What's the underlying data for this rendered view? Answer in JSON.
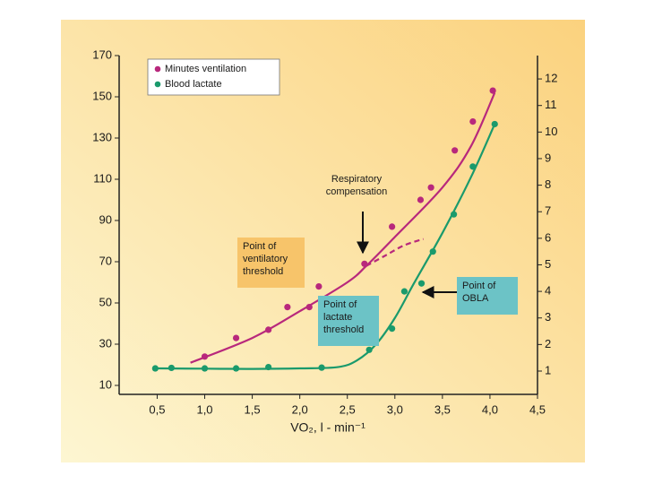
{
  "chart_data": {
    "type": "scatter",
    "xlabel": "VO₂, l - min⁻¹",
    "xlim": [
      0.1,
      4.5
    ],
    "xticks": [
      {
        "value": 0.5,
        "label": "0,5"
      },
      {
        "value": 1.0,
        "label": "1,0"
      },
      {
        "value": 1.5,
        "label": "1,5"
      },
      {
        "value": 2.0,
        "label": "2,0"
      },
      {
        "value": 2.5,
        "label": "2,5"
      },
      {
        "value": 3.0,
        "label": "3,0"
      },
      {
        "value": 3.5,
        "label": "3,5"
      },
      {
        "value": 4.0,
        "label": "4,0"
      },
      {
        "value": 4.5,
        "label": "4,5"
      }
    ],
    "ylim": [
      10,
      170
    ],
    "yticks": [
      10,
      30,
      50,
      70,
      90,
      110,
      130,
      150,
      170
    ],
    "y2lim": [
      0.46,
      12.88
    ],
    "y2ticks": [
      1,
      2,
      3,
      4,
      5,
      6,
      7,
      8,
      9,
      10,
      11,
      12
    ],
    "legend": "upper left",
    "series": [
      {
        "name": "Minutes ventilation",
        "color": "#b8287c",
        "x": [
          1.0,
          1.33,
          1.67,
          1.87,
          2.1,
          2.2,
          2.68,
          2.97,
          3.27,
          3.38,
          3.63,
          3.82,
          4.03
        ],
        "values": [
          24,
          33,
          37,
          48,
          48,
          58,
          69,
          87,
          100,
          106,
          124,
          138,
          153
        ],
        "curve": {
          "x": [
            0.85,
            1.5,
            2.0,
            2.5,
            2.7,
            3.0,
            3.5,
            3.8,
            4.05
          ],
          "values": [
            21,
            33,
            46,
            60,
            68,
            82,
            106,
            126,
            152
          ]
        },
        "dashed_curve": {
          "x": [
            2.7,
            2.9,
            3.1,
            3.3
          ],
          "values": [
            68,
            73,
            78,
            81
          ]
        }
      },
      {
        "name": "Blood lactate",
        "color": "#1a9a6c",
        "axis": "y2",
        "x": [
          0.48,
          0.65,
          1.0,
          1.33,
          1.67,
          2.23,
          2.73,
          2.97,
          3.1,
          3.28,
          3.4,
          3.62,
          3.82,
          4.05
        ],
        "values": [
          1.1,
          1.12,
          1.1,
          1.1,
          1.15,
          1.13,
          1.8,
          2.6,
          4.0,
          4.3,
          5.5,
          6.9,
          8.7,
          10.3
        ],
        "curve": {
          "x": [
            0.5,
            1.0,
            1.5,
            2.0,
            2.4,
            2.6,
            2.8,
            3.0,
            3.2,
            3.5,
            3.8,
            4.05
          ],
          "values": [
            1.1,
            1.09,
            1.08,
            1.1,
            1.15,
            1.4,
            2.0,
            3.0,
            4.3,
            6.2,
            8.3,
            10.3
          ]
        }
      }
    ],
    "annotations": [
      {
        "lines": [
          "Respiratory",
          "compensation"
        ]
      },
      {
        "lines": [
          "Point of",
          "ventilatory",
          "threshold"
        ],
        "color": "#f7c46a"
      },
      {
        "lines": [
          "Point of",
          "lactate",
          "threshold"
        ],
        "color": "#6cc3c6"
      },
      {
        "lines": [
          "Point of",
          "OBLA"
        ],
        "color": "#6cc3c6"
      }
    ]
  }
}
